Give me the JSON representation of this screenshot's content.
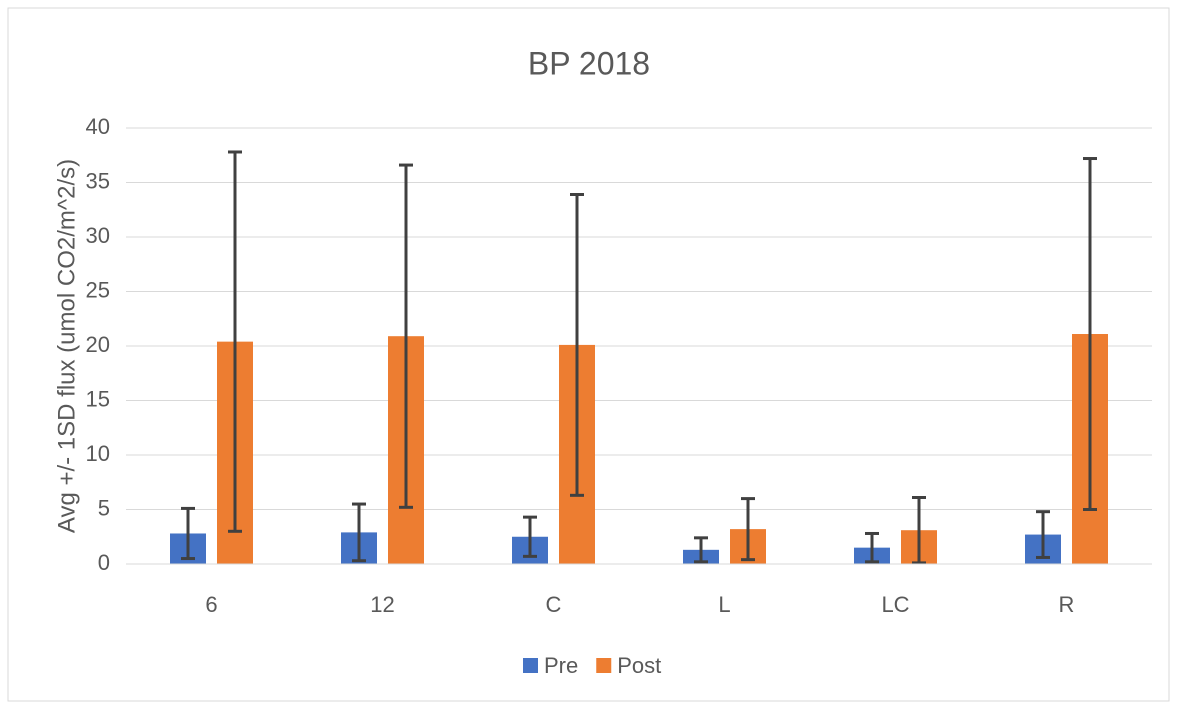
{
  "chart_data": {
    "type": "bar",
    "title": "BP 2018",
    "y_label": "Avg +/- 1SD flux (umol CO2/m^2/s)",
    "categories": [
      "6",
      "12",
      "C",
      "L",
      "LC",
      "R"
    ],
    "series": [
      {
        "name": "Pre",
        "color": "#4472c4",
        "values": [
          2.8,
          2.9,
          2.5,
          1.3,
          1.5,
          2.7
        ],
        "errors": [
          2.3,
          2.6,
          1.8,
          1.1,
          1.3,
          2.1
        ]
      },
      {
        "name": "Post",
        "color": "#ed7d31",
        "values": [
          20.4,
          20.9,
          20.1,
          3.2,
          3.1,
          21.1
        ],
        "errors": [
          17.4,
          15.7,
          13.8,
          2.8,
          3.0,
          16.1
        ]
      }
    ],
    "ylim": [
      0,
      40
    ],
    "yticks": [
      0,
      5,
      10,
      15,
      20,
      25,
      30,
      35,
      40
    ],
    "grid": true,
    "legend": "bottom"
  }
}
